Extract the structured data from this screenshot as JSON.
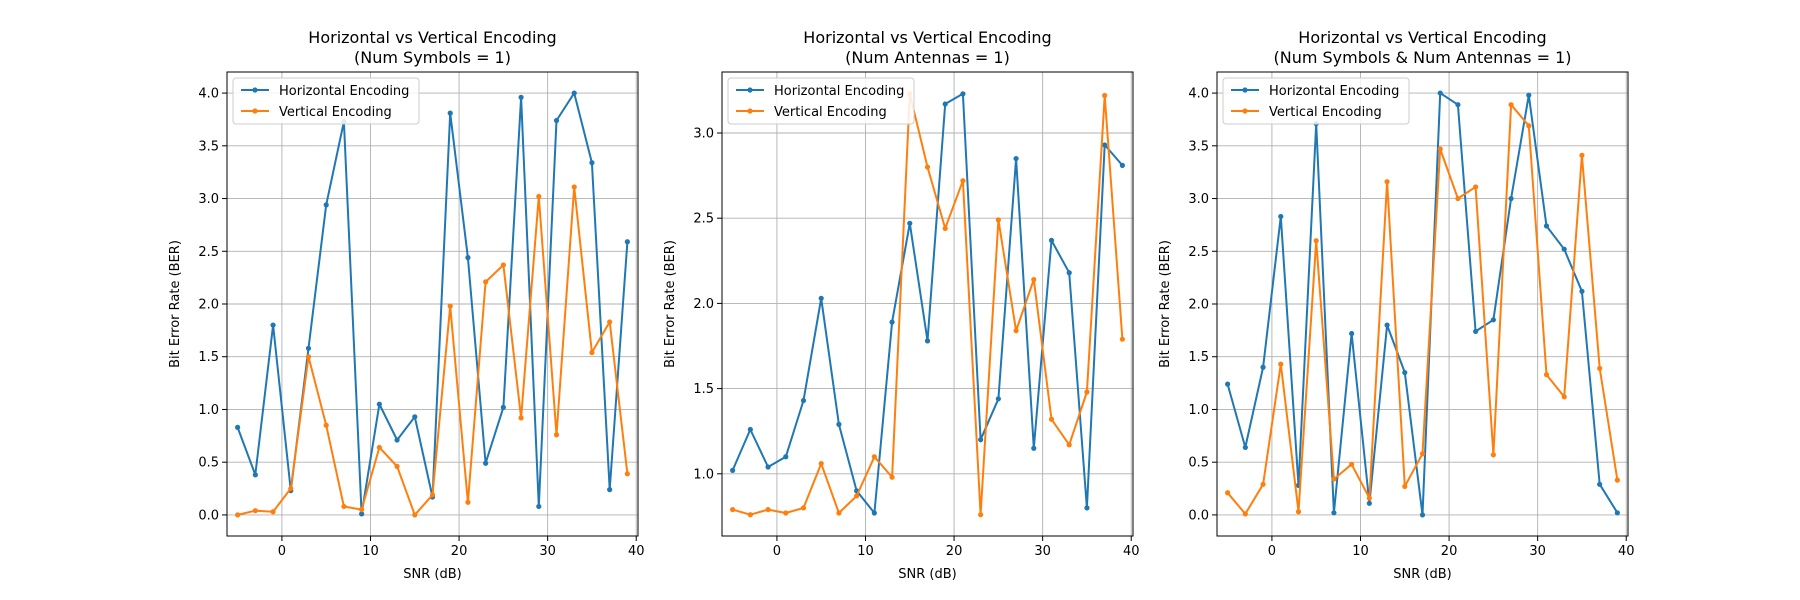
{
  "colors": {
    "horizontal": "#1f77b4",
    "vertical": "#ff7f0e",
    "grid": "#b0b0b0"
  },
  "chart_data": [
    {
      "type": "line",
      "title": [
        "Horizontal vs Vertical Encoding",
        "(Num Symbols = 1)"
      ],
      "xlabel": "SNR (dB)",
      "ylabel": "Bit Error Rate (BER)",
      "xlim": [
        -6.2,
        40.2
      ],
      "ylim": [
        -0.2,
        4.2
      ],
      "xticks": [
        0,
        10,
        20,
        30,
        40
      ],
      "xtick_labels": [
        "0",
        "10",
        "20",
        "30",
        "40"
      ],
      "yticks": [
        0,
        0.5,
        1,
        1.5,
        2,
        2.5,
        3,
        3.5,
        4
      ],
      "ytick_labels": [
        "0.0",
        "0.5",
        "1.0",
        "1.5",
        "2.0",
        "2.5",
        "3.0",
        "3.5",
        "4.0"
      ],
      "grid": true,
      "legend": "upper-left",
      "x": [
        -5,
        -3,
        -1,
        1,
        3,
        5,
        7,
        9,
        11,
        13,
        15,
        17,
        19,
        21,
        23,
        25,
        27,
        29,
        31,
        33,
        35,
        37,
        39
      ],
      "series": [
        {
          "name": "Horizontal Encoding",
          "color": "#1f77b4",
          "values": [
            0.83,
            0.38,
            1.8,
            0.23,
            1.58,
            2.94,
            3.73,
            0.01,
            1.05,
            0.71,
            0.93,
            0.17,
            3.81,
            2.44,
            0.49,
            1.02,
            3.96,
            0.08,
            3.74,
            4.0,
            3.34,
            0.24,
            2.59
          ]
        },
        {
          "name": "Vertical Encoding",
          "color": "#ff7f0e",
          "values": [
            0.0,
            0.04,
            0.03,
            0.25,
            1.5,
            0.85,
            0.08,
            0.05,
            0.64,
            0.46,
            0.0,
            0.19,
            1.98,
            0.12,
            2.21,
            2.37,
            0.92,
            3.02,
            0.76,
            3.11,
            1.54,
            1.83,
            0.39
          ]
        }
      ]
    },
    {
      "type": "line",
      "title": [
        "Horizontal vs Vertical Encoding",
        "(Num Antennas = 1)"
      ],
      "xlabel": "SNR (dB)",
      "ylabel": "Bit Error Rate (BER)",
      "xlim": [
        -6.2,
        40.2
      ],
      "ylim": [
        0.635,
        3.358
      ],
      "xticks": [
        0,
        10,
        20,
        30,
        40
      ],
      "xtick_labels": [
        "0",
        "10",
        "20",
        "30",
        "40"
      ],
      "yticks": [
        1.0,
        1.5,
        2.0,
        2.5,
        3.0
      ],
      "ytick_labels": [
        "1.0",
        "1.5",
        "2.0",
        "2.5",
        "3.0"
      ],
      "grid": true,
      "legend": "upper-left",
      "x": [
        -5,
        -3,
        -1,
        1,
        3,
        5,
        7,
        9,
        11,
        13,
        15,
        17,
        19,
        21,
        23,
        25,
        27,
        29,
        31,
        33,
        35,
        37,
        39
      ],
      "series": [
        {
          "name": "Horizontal Encoding",
          "color": "#1f77b4",
          "values": [
            1.02,
            1.26,
            1.04,
            1.1,
            1.43,
            2.03,
            1.29,
            0.9,
            0.77,
            1.89,
            2.47,
            1.78,
            3.17,
            3.23,
            1.2,
            1.44,
            2.85,
            1.15,
            2.37,
            2.18,
            0.8,
            2.93,
            2.81
          ]
        },
        {
          "name": "Vertical Encoding",
          "color": "#ff7f0e",
          "values": [
            0.79,
            0.76,
            0.79,
            0.77,
            0.8,
            1.06,
            0.77,
            0.87,
            1.1,
            0.98,
            3.23,
            2.8,
            2.44,
            2.72,
            0.76,
            2.49,
            1.84,
            2.14,
            1.32,
            1.17,
            1.48,
            3.22,
            1.79
          ]
        }
      ]
    },
    {
      "type": "line",
      "title": [
        "Horizontal vs Vertical Encoding",
        "(Num Symbols & Num Antennas = 1)"
      ],
      "xlabel": "SNR (dB)",
      "ylabel": "Bit Error Rate (BER)",
      "xlim": [
        -6.2,
        40.2
      ],
      "ylim": [
        -0.2,
        4.2
      ],
      "xticks": [
        0,
        10,
        20,
        30,
        40
      ],
      "xtick_labels": [
        "0",
        "10",
        "20",
        "30",
        "40"
      ],
      "yticks": [
        0,
        0.5,
        1,
        1.5,
        2,
        2.5,
        3,
        3.5,
        4
      ],
      "ytick_labels": [
        "0.0",
        "0.5",
        "1.0",
        "1.5",
        "2.0",
        "2.5",
        "3.0",
        "3.5",
        "4.0"
      ],
      "grid": true,
      "legend": "upper-left",
      "x": [
        -5,
        -3,
        -1,
        1,
        3,
        5,
        7,
        9,
        11,
        13,
        15,
        17,
        19,
        21,
        23,
        25,
        27,
        29,
        31,
        33,
        35,
        37,
        39
      ],
      "series": [
        {
          "name": "Horizontal Encoding",
          "color": "#1f77b4",
          "values": [
            1.24,
            0.64,
            1.4,
            2.83,
            0.28,
            3.71,
            0.02,
            1.72,
            0.11,
            1.8,
            1.35,
            0.0,
            4.0,
            3.89,
            1.74,
            1.85,
            3.0,
            3.98,
            2.74,
            2.52,
            2.12,
            0.29,
            0.02
          ]
        },
        {
          "name": "Vertical Encoding",
          "color": "#ff7f0e",
          "values": [
            0.21,
            0.01,
            0.29,
            1.43,
            0.03,
            2.6,
            0.34,
            0.48,
            0.16,
            3.16,
            0.27,
            0.58,
            3.47,
            3.0,
            3.11,
            0.57,
            3.89,
            3.69,
            1.33,
            1.12,
            3.41,
            1.39,
            0.33
          ]
        }
      ]
    }
  ]
}
